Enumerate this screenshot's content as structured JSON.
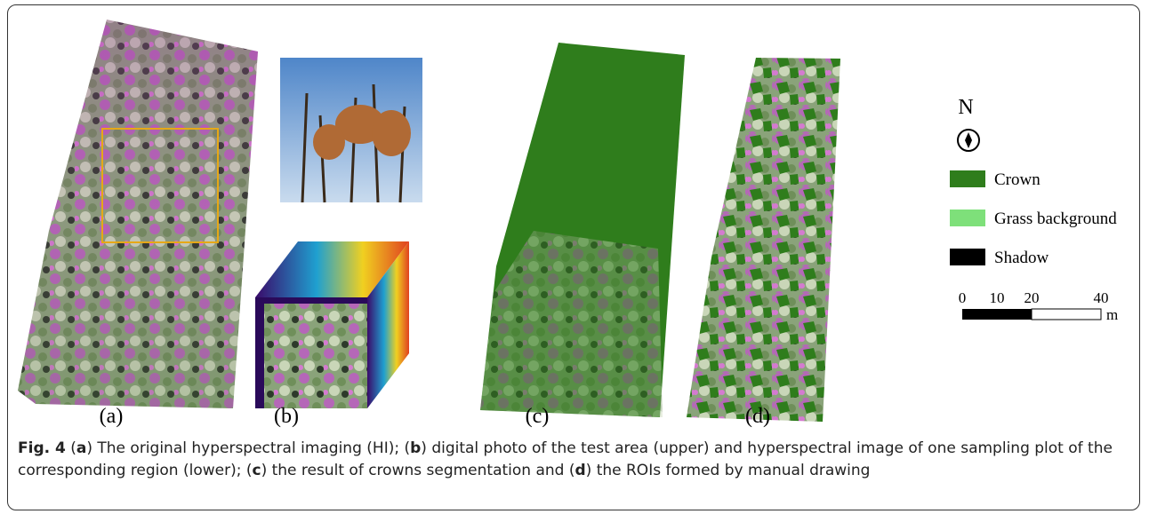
{
  "panels": [
    {
      "label": "(a)"
    },
    {
      "label": "(b)"
    },
    {
      "label": "(c)"
    },
    {
      "label": "(d)"
    }
  ],
  "legend": {
    "north": "N",
    "items": [
      {
        "label": "Crown",
        "color": "#2f7d1c"
      },
      {
        "label": "Grass background",
        "color": "#7ee07a"
      },
      {
        "label": "Shadow",
        "color": "#000000"
      }
    ]
  },
  "scale_bar": {
    "ticks": [
      0,
      10,
      20,
      40
    ],
    "unit": "m"
  },
  "caption": {
    "figure": "Fig. 4",
    "parts": [
      "(",
      "a",
      ") The original hyperspectral imaging (HI); (",
      "b",
      ") digital photo of the test area (upper) and hyperspectral image of one sampling plot of the",
      "corresponding region (lower); (",
      "c",
      ") the result of crowns segmentation and (",
      "d",
      ") the ROIs formed by manual drawing"
    ]
  }
}
